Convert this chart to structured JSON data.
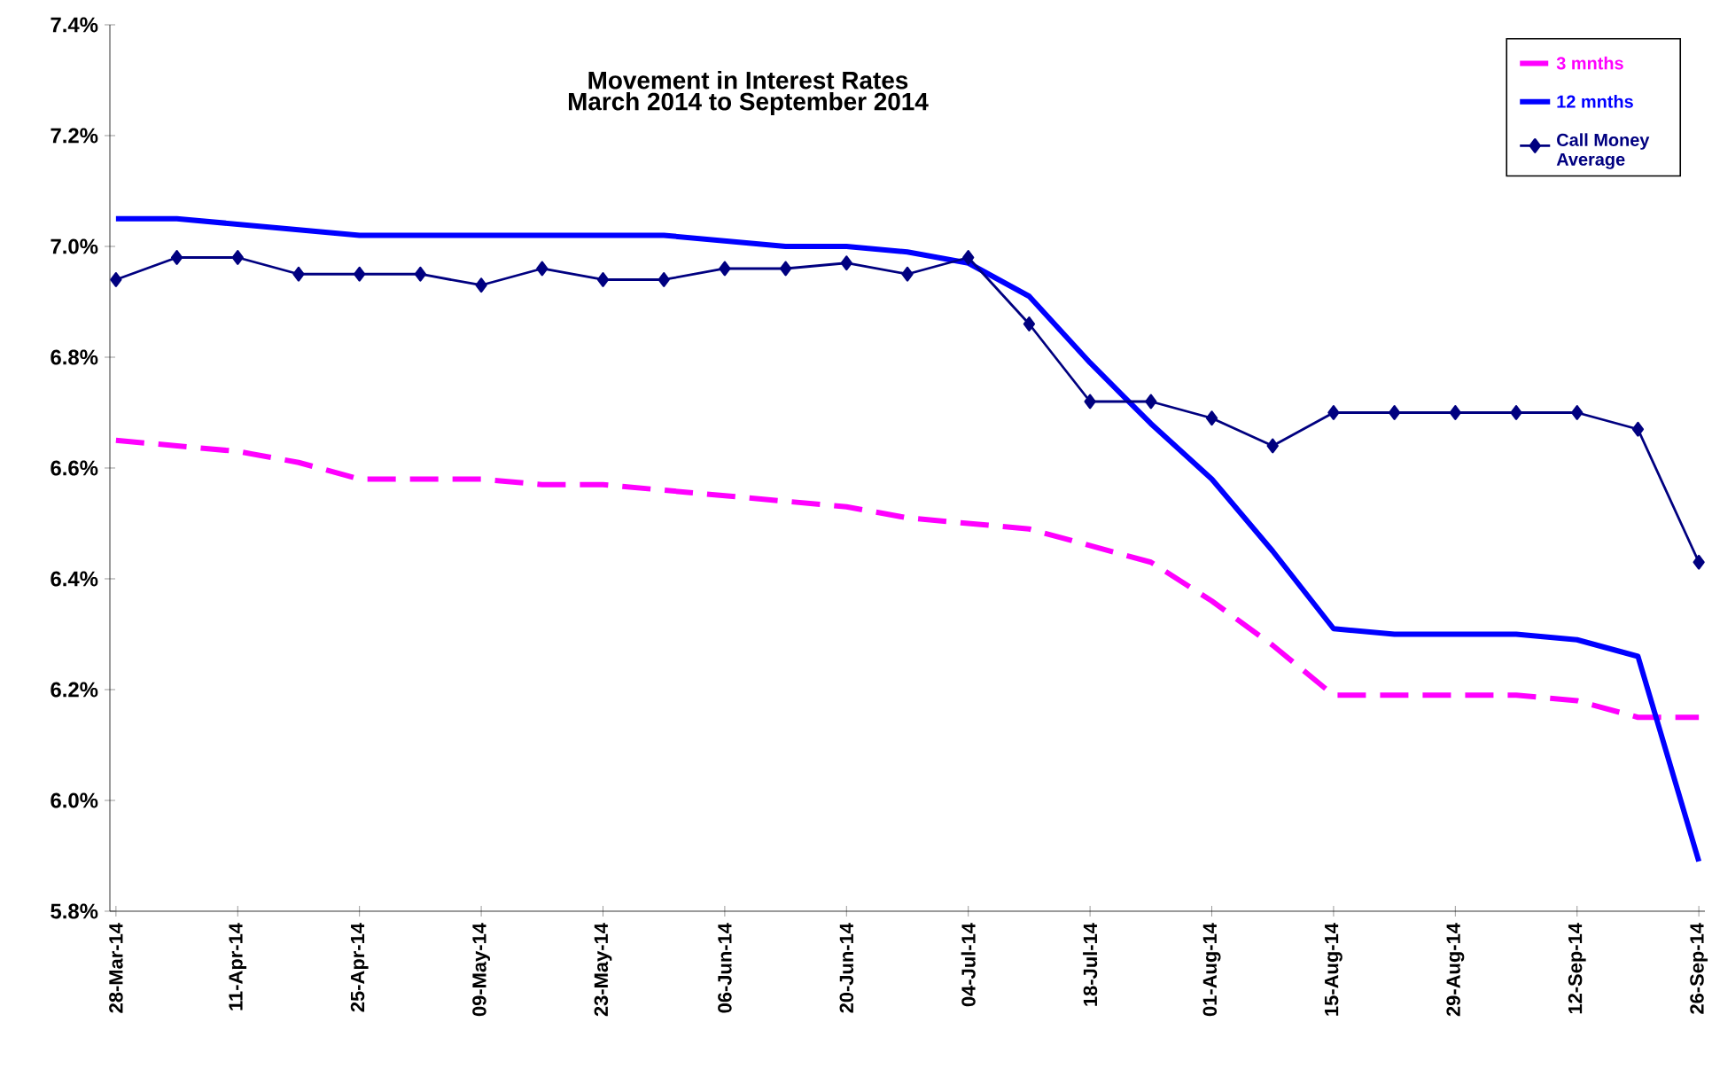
{
  "chart_data": {
    "type": "line",
    "title": "Movement in Interest Rates",
    "subtitle": "March 2014 to September 2014",
    "categories": [
      "28-Mar-14",
      null,
      "11-Apr-14",
      null,
      "25-Apr-14",
      null,
      "09-May-14",
      null,
      "23-May-14",
      null,
      "06-Jun-14",
      null,
      "20-Jun-14",
      null,
      "04-Jul-14",
      null,
      "18-Jul-14",
      null,
      "01-Aug-14",
      null,
      "15-Aug-14",
      null,
      "29-Aug-14",
      null,
      "12-Sep-14",
      null,
      "26-Sep-14"
    ],
    "series": [
      {
        "name": "3 mnths",
        "color": "#ff00ff",
        "line_style": "dashed",
        "marker": "none",
        "values": [
          6.65,
          6.64,
          6.63,
          6.61,
          6.58,
          6.58,
          6.58,
          6.57,
          6.57,
          6.56,
          6.55,
          6.54,
          6.53,
          6.51,
          6.5,
          6.49,
          6.46,
          6.43,
          6.36,
          6.28,
          6.19,
          6.19,
          6.19,
          6.19,
          6.18,
          6.15,
          6.15
        ]
      },
      {
        "name": "12 mnths",
        "color": "#0000ff",
        "line_style": "solid",
        "marker": "none",
        "values": [
          7.05,
          7.05,
          7.04,
          7.03,
          7.02,
          7.02,
          7.02,
          7.02,
          7.02,
          7.02,
          7.01,
          7.0,
          7.0,
          6.99,
          6.97,
          6.91,
          6.79,
          6.68,
          6.58,
          6.45,
          6.31,
          6.3,
          6.3,
          6.3,
          6.29,
          6.26,
          5.89
        ]
      },
      {
        "name": "Call Money Average",
        "color": "#000080",
        "line_style": "solid",
        "marker": "diamond",
        "values": [
          6.94,
          6.98,
          6.98,
          6.95,
          6.95,
          6.95,
          6.93,
          6.96,
          6.94,
          6.94,
          6.96,
          6.96,
          6.97,
          6.95,
          6.98,
          6.86,
          6.72,
          6.72,
          6.69,
          6.64,
          6.7,
          6.7,
          6.7,
          6.7,
          6.7,
          6.67,
          6.43
        ]
      }
    ],
    "ylim": [
      5.8,
      7.4
    ],
    "yticks": [
      {
        "value": 5.8,
        "label": "5.8%"
      },
      {
        "value": 6.0,
        "label": "6.0%"
      },
      {
        "value": 6.2,
        "label": "6.2%"
      },
      {
        "value": 6.4,
        "label": "6.4%"
      },
      {
        "value": 6.6,
        "label": "6.6%"
      },
      {
        "value": 6.8,
        "label": "6.8%"
      },
      {
        "value": 7.0,
        "label": "7.0%"
      },
      {
        "value": 7.2,
        "label": "7.2%"
      },
      {
        "value": 7.4,
        "label": "7.4%"
      }
    ],
    "grid": false,
    "legend": "top right"
  }
}
